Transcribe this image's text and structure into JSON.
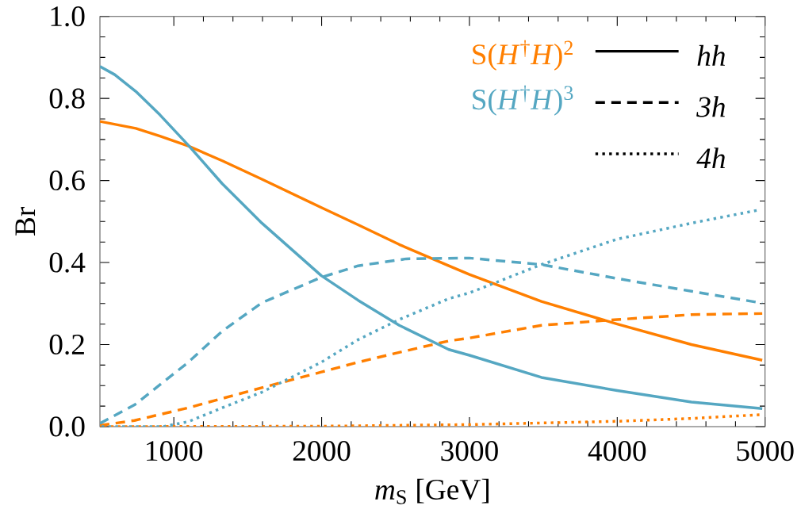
{
  "chart_data": {
    "type": "line",
    "xlabel": "*m*$_{S}$ [GeV]",
    "ylabel": "Br",
    "xlim": [
      500,
      5000
    ],
    "ylim": [
      0,
      1
    ],
    "xticks": [
      1000,
      2000,
      3000,
      4000,
      5000
    ],
    "yticks": [
      {
        "value": 0,
        "label": "0.0"
      },
      {
        "value": 0.2,
        "label": "0.2"
      },
      {
        "value": 0.4,
        "label": "0.4"
      },
      {
        "value": 0.6,
        "label": "0.6"
      },
      {
        "value": 0.8,
        "label": "0.8"
      },
      {
        "value": 1,
        "label": "1.0"
      }
    ],
    "legend": "top right",
    "grid": false,
    "annotations": [
      "*hh*",
      "*3h*",
      "*4h*"
    ],
    "series": [
      {
        "name": "S(*H*$^{†}$*H*)$^{2}$",
        "color": "#ff7f00",
        "line_style": "solid",
        "x": [
          500,
          743,
          906,
          1098,
          1328,
          1596,
          1998,
          2247,
          2525,
          2860,
          3000,
          3487,
          4000,
          4502,
          4981
        ],
        "values": [
          0.744,
          0.727,
          0.708,
          0.684,
          0.648,
          0.603,
          0.534,
          0.492,
          0.444,
          0.392,
          0.371,
          0.305,
          0.25,
          0.2,
          0.162
        ]
      },
      {
        "color": "#ff7f00",
        "line_style": "dashed",
        "x": [
          500,
          734,
          1098,
          1596,
          1998,
          2247,
          2525,
          2860,
          3000,
          3487,
          4000,
          4502,
          4981
        ],
        "values": [
          0.003,
          0.015,
          0.046,
          0.095,
          0.133,
          0.157,
          0.181,
          0.209,
          0.216,
          0.247,
          0.261,
          0.273,
          0.276
        ]
      },
      {
        "color": "#ff7f00",
        "line_style": "dotted",
        "x": [
          500,
          2000,
          3000,
          4000,
          4502,
          4962
        ],
        "values": [
          0,
          0.001,
          0.005,
          0.013,
          0.02,
          0.029
        ]
      },
      {
        "name": "S(*H*$^{†}$*H*)$^{3}$",
        "color": "#55a7c2",
        "line_style": "solid",
        "x": [
          500,
          600,
          743,
          906,
          1098,
          1328,
          1596,
          1998,
          2247,
          2525,
          2860,
          3000,
          3487,
          4000,
          4502,
          4981
        ],
        "values": [
          0.878,
          0.858,
          0.817,
          0.76,
          0.686,
          0.592,
          0.496,
          0.368,
          0.308,
          0.247,
          0.188,
          0.174,
          0.12,
          0.088,
          0.06,
          0.044
        ]
      },
      {
        "color": "#55a7c2",
        "line_style": "dashed",
        "x": [
          500,
          734,
          906,
          1098,
          1328,
          1596,
          1998,
          2247,
          2573,
          3000,
          3487,
          4000,
          4502,
          4981
        ],
        "values": [
          0.008,
          0.053,
          0.102,
          0.157,
          0.233,
          0.302,
          0.364,
          0.392,
          0.409,
          0.411,
          0.395,
          0.361,
          0.33,
          0.301
        ]
      },
      {
        "color": "#55a7c2",
        "line_style": "dotted",
        "x": [
          500,
          925,
          1098,
          1328,
          1596,
          1998,
          2247,
          2525,
          2860,
          3000,
          3487,
          4000,
          4502,
          4943
        ],
        "values": [
          0,
          0,
          0.012,
          0.046,
          0.084,
          0.157,
          0.212,
          0.261,
          0.312,
          0.326,
          0.395,
          0.457,
          0.496,
          0.527
        ]
      }
    ]
  }
}
